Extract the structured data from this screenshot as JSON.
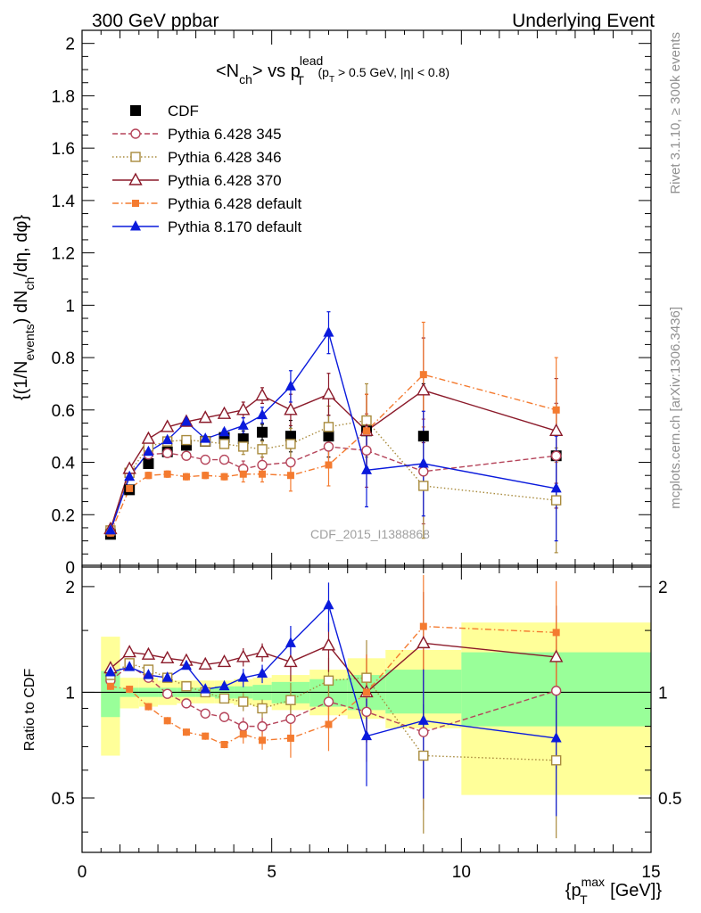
{
  "header": {
    "left": "300 GeV ppbar",
    "right": "Underlying Event"
  },
  "side_labels": {
    "rivet": "Rivet 3.1.10, ≥ 300k events",
    "mcplots": "mcplots.cern.ch [arXiv:1306.3436]"
  },
  "chart_data": [
    {
      "type": "scatter",
      "panel": "main",
      "title": "<Nch> vs pT lead (pT > 0.5 GeV, |η| < 0.8)",
      "title_parts": {
        "pre": "<N",
        "ch": "ch",
        "mid": "> vs p",
        "T": "T",
        "lead": "lead",
        "cut_a": " (p",
        "cut_b": " > 0.5 GeV, |η| < 0.8)"
      },
      "ylabel": "{(1/Nevents) dNch/dη, dφ}",
      "ylabel_parts": {
        "a": "{(1/N",
        "events": "events",
        "b": ") dN",
        "ch": "ch",
        "c": "/dη, dφ}"
      },
      "watermark": "CDF_2015_I1388868",
      "xlim": [
        0,
        15
      ],
      "ylim": [
        0,
        2.05
      ],
      "yticks": [
        "0",
        "0.2",
        "0.4",
        "0.6",
        "0.8",
        "1",
        "1.2",
        "1.4",
        "1.6",
        "1.8",
        "2"
      ],
      "legend_position": "top-left",
      "series": [
        {
          "name": "CDF",
          "color": "#000000",
          "marker": "filled-square",
          "line": "none",
          "x": [
            0.75,
            1.25,
            1.75,
            2.25,
            2.75,
            3.25,
            3.75,
            4.25,
            4.75,
            5.5,
            6.5,
            7.5,
            9.0,
            12.5
          ],
          "y": [
            0.125,
            0.295,
            0.395,
            0.44,
            0.465,
            0.48,
            0.495,
            0.49,
            0.515,
            0.5,
            0.5,
            0.52,
            0.5,
            0.425
          ]
        },
        {
          "name": "Pythia 6.428 345",
          "color": "#b5445a",
          "marker": "open-circle",
          "line": "dashed",
          "x": [
            0.75,
            1.25,
            1.75,
            2.25,
            2.75,
            3.25,
            3.75,
            4.25,
            4.75,
            5.5,
            6.5,
            7.5,
            9.0,
            12.5
          ],
          "y": [
            0.135,
            0.355,
            0.43,
            0.435,
            0.425,
            0.41,
            0.41,
            0.375,
            0.39,
            0.4,
            0.46,
            0.445,
            0.365,
            0.425
          ]
        },
        {
          "name": "Pythia 6.428 346",
          "color": "#a88a3c",
          "marker": "open-square",
          "line": "dotted",
          "x": [
            0.75,
            1.25,
            1.75,
            2.25,
            2.75,
            3.25,
            3.75,
            4.25,
            4.75,
            5.5,
            6.5,
            7.5,
            9.0,
            12.5
          ],
          "y": [
            0.14,
            0.36,
            0.46,
            0.48,
            0.485,
            0.48,
            0.47,
            0.46,
            0.45,
            0.47,
            0.535,
            0.56,
            0.31,
            0.255
          ]
        },
        {
          "name": "Pythia 6.428 370",
          "color": "#8b1a2a",
          "marker": "open-triangle",
          "line": "solid",
          "x": [
            0.75,
            1.25,
            1.75,
            2.25,
            2.75,
            3.25,
            3.75,
            4.25,
            4.75,
            5.5,
            6.5,
            7.5,
            9.0,
            12.5
          ],
          "y": [
            0.145,
            0.375,
            0.49,
            0.535,
            0.555,
            0.57,
            0.585,
            0.6,
            0.655,
            0.6,
            0.66,
            0.52,
            0.675,
            0.52
          ]
        },
        {
          "name": "Pythia 6.428 default",
          "color": "#f47b30",
          "marker": "filled-small-square",
          "line": "dashdot",
          "x": [
            0.75,
            1.25,
            1.75,
            2.25,
            2.75,
            3.25,
            3.75,
            4.25,
            4.75,
            5.5,
            6.5,
            7.5,
            9.0,
            12.5
          ],
          "y": [
            0.13,
            0.3,
            0.35,
            0.355,
            0.345,
            0.35,
            0.345,
            0.355,
            0.355,
            0.35,
            0.39,
            0.52,
            0.735,
            0.6
          ]
        },
        {
          "name": "Pythia 8.170 default",
          "color": "#0a1adc",
          "marker": "filled-triangle",
          "line": "solid",
          "x": [
            0.75,
            1.25,
            1.75,
            2.25,
            2.75,
            3.25,
            3.75,
            4.25,
            4.75,
            5.5,
            6.5,
            7.5,
            9.0,
            12.5
          ],
          "y": [
            0.14,
            0.345,
            0.44,
            0.485,
            0.555,
            0.49,
            0.515,
            0.54,
            0.58,
            0.69,
            0.895,
            0.37,
            0.395,
            0.3
          ]
        }
      ]
    },
    {
      "type": "scatter",
      "panel": "ratio",
      "ylabel": "Ratio to CDF",
      "xlabel": "{pTmax [GeV]}",
      "xlabel_parts": {
        "a": "{p",
        "max": "max",
        "T": "T",
        "b": " [GeV]}"
      },
      "xlim": [
        0,
        15
      ],
      "ylim": [
        0.35,
        2.3
      ],
      "yticks": [
        "0.5",
        "1",
        "2"
      ],
      "xticks": [
        "0",
        "5",
        "10",
        "15"
      ],
      "bands": {
        "edges": [
          0.5,
          1.0,
          1.5,
          2.0,
          2.5,
          3.0,
          3.5,
          4.0,
          4.5,
          5.0,
          6.0,
          7.0,
          8.0,
          10.0,
          15.0
        ],
        "inner_low": [
          0.85,
          0.97,
          0.97,
          0.97,
          0.97,
          0.97,
          0.96,
          0.96,
          0.95,
          0.93,
          0.91,
          0.89,
          0.87,
          0.8
        ],
        "inner_high": [
          1.15,
          1.03,
          1.03,
          1.03,
          1.03,
          1.03,
          1.04,
          1.04,
          1.05,
          1.07,
          1.09,
          1.12,
          1.16,
          1.3
        ],
        "outer_low": [
          0.66,
          0.9,
          0.91,
          0.92,
          0.93,
          0.93,
          0.93,
          0.92,
          0.91,
          0.89,
          0.86,
          0.84,
          0.79,
          0.51
        ],
        "outer_high": [
          1.44,
          1.1,
          1.1,
          1.08,
          1.08,
          1.08,
          1.08,
          1.09,
          1.1,
          1.12,
          1.16,
          1.25,
          1.32,
          1.58
        ]
      },
      "series": [
        {
          "name": "Pythia 6.428 345",
          "color": "#b5445a",
          "marker": "open-circle",
          "line": "dashed",
          "x": [
            0.75,
            1.25,
            1.75,
            2.25,
            2.75,
            3.25,
            3.75,
            4.25,
            4.75,
            5.5,
            6.5,
            7.5,
            9.0,
            12.5
          ],
          "y": [
            1.08,
            1.19,
            1.1,
            0.99,
            0.93,
            0.87,
            0.85,
            0.8,
            0.8,
            0.84,
            0.94,
            0.88,
            0.77,
            1.01
          ]
        },
        {
          "name": "Pythia 6.428 346",
          "color": "#a88a3c",
          "marker": "open-square",
          "line": "dotted",
          "x": [
            0.75,
            1.25,
            1.75,
            2.25,
            2.75,
            3.25,
            3.75,
            4.25,
            4.75,
            5.5,
            6.5,
            7.5,
            9.0,
            12.5
          ],
          "y": [
            1.12,
            1.21,
            1.16,
            1.1,
            1.04,
            1.0,
            0.96,
            0.94,
            0.9,
            0.95,
            1.08,
            1.1,
            0.66,
            0.64
          ]
        },
        {
          "name": "Pythia 6.428 370",
          "color": "#8b1a2a",
          "marker": "open-triangle",
          "line": "solid",
          "x": [
            0.75,
            1.25,
            1.75,
            2.25,
            2.75,
            3.25,
            3.75,
            4.25,
            4.75,
            5.5,
            6.5,
            7.5,
            9.0,
            12.5
          ],
          "y": [
            1.17,
            1.3,
            1.28,
            1.25,
            1.23,
            1.2,
            1.22,
            1.26,
            1.3,
            1.22,
            1.36,
            1.0,
            1.38,
            1.26
          ]
        },
        {
          "name": "Pythia 6.428 default",
          "color": "#f47b30",
          "marker": "filled-small-square",
          "line": "dashdot",
          "x": [
            0.75,
            1.25,
            1.75,
            2.25,
            2.75,
            3.25,
            3.75,
            4.25,
            4.75,
            5.5,
            6.5,
            7.5,
            9.0,
            12.5
          ],
          "y": [
            1.04,
            1.02,
            0.91,
            0.83,
            0.77,
            0.75,
            0.71,
            0.76,
            0.73,
            0.74,
            0.81,
            1.0,
            1.54,
            1.48
          ]
        },
        {
          "name": "Pythia 8.170 default",
          "color": "#0a1adc",
          "marker": "filled-triangle",
          "line": "solid",
          "x": [
            0.75,
            1.25,
            1.75,
            2.25,
            2.75,
            3.25,
            3.75,
            4.25,
            4.75,
            5.5,
            6.5,
            7.5,
            9.0,
            12.5
          ],
          "y": [
            1.14,
            1.18,
            1.12,
            1.1,
            1.19,
            1.02,
            1.04,
            1.1,
            1.13,
            1.38,
            1.77,
            0.75,
            0.83,
            0.74
          ]
        }
      ]
    }
  ]
}
